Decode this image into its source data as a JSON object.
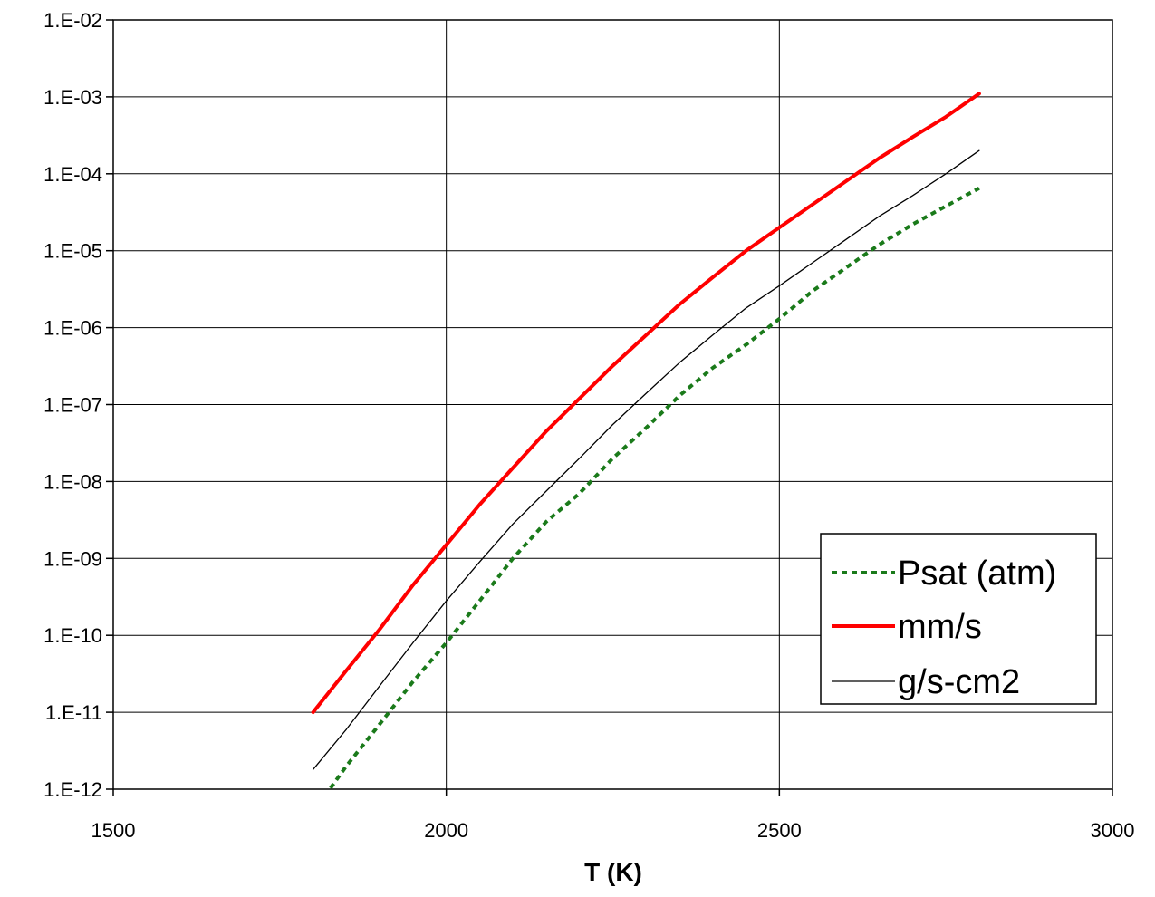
{
  "chart_data": {
    "type": "line",
    "title": "",
    "xlabel": "T (K)",
    "ylabel": "",
    "xlim": [
      1500,
      3000
    ],
    "ylim": [
      1e-12,
      0.01
    ],
    "yscale": "log",
    "grid": true,
    "legend_position": "bottom-right",
    "x_tick_values": [
      1500,
      2000,
      2500,
      3000
    ],
    "x_tick_labels": [
      "1500",
      "2000",
      "2500",
      "3000"
    ],
    "y_tick_values": [
      1e-12,
      1e-11,
      1e-10,
      1e-09,
      1e-08,
      1e-07,
      1e-06,
      1e-05,
      0.0001,
      0.001,
      0.01
    ],
    "y_tick_labels": [
      "1.E-12",
      "1.E-11",
      "1.E-10",
      "1.E-09",
      "1.E-08",
      "1.E-07",
      "1.E-06",
      "1.E-05",
      "1.E-04",
      "1.E-03",
      "1.E-02"
    ],
    "series": [
      {
        "name": "Psat (atm)",
        "color": "#1a7a1a",
        "style": "dotted",
        "x": [
          1800,
          1850,
          1900,
          1950,
          2000,
          2050,
          2100,
          2150,
          2200,
          2250,
          2300,
          2350,
          2400,
          2450,
          2500,
          2550,
          2600,
          2650,
          2700,
          2750,
          2800
        ],
        "y": [
          5e-13,
          2e-12,
          7e-12,
          2.5e-11,
          8e-11,
          2.8e-10,
          1e-09,
          3e-09,
          7e-09,
          2e-08,
          5e-08,
          1.3e-07,
          3e-07,
          6e-07,
          1.3e-06,
          3e-06,
          6e-06,
          1.2e-05,
          2.2e-05,
          3.8e-05,
          6.5e-05
        ]
      },
      {
        "name": "mm/s",
        "color": "#ff0000",
        "style": "solid-thick",
        "x": [
          1800,
          1850,
          1900,
          1950,
          2000,
          2050,
          2100,
          2150,
          2200,
          2250,
          2300,
          2350,
          2400,
          2450,
          2500,
          2550,
          2600,
          2650,
          2700,
          2750,
          2800
        ],
        "y": [
          1e-11,
          3.5e-11,
          1.2e-10,
          4.5e-10,
          1.5e-09,
          5e-09,
          1.5e-08,
          4.5e-08,
          1.2e-07,
          3.2e-07,
          8e-07,
          2e-06,
          4.5e-06,
          1e-05,
          2e-05,
          4e-05,
          8e-05,
          0.00016,
          0.0003,
          0.00055,
          0.0011
        ]
      },
      {
        "name": "g/s-cm2",
        "color": "#000000",
        "style": "solid-thin",
        "x": [
          1800,
          1850,
          1900,
          1950,
          2000,
          2050,
          2100,
          2150,
          2200,
          2250,
          2300,
          2350,
          2400,
          2450,
          2500,
          2550,
          2600,
          2650,
          2700,
          2750,
          2800
        ],
        "y": [
          1.8e-12,
          6e-12,
          2.2e-11,
          8e-11,
          2.8e-10,
          9e-10,
          2.8e-09,
          7.5e-09,
          2e-08,
          5.5e-08,
          1.4e-07,
          3.5e-07,
          8e-07,
          1.8e-06,
          3.5e-06,
          7e-06,
          1.4e-05,
          2.8e-05,
          5.2e-05,
          0.0001,
          0.0002
        ]
      }
    ]
  }
}
